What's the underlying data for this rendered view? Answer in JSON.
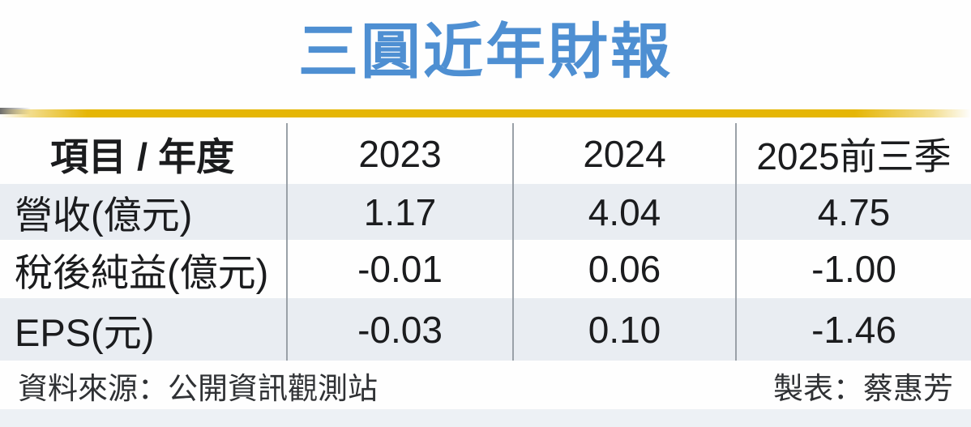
{
  "title": "三圓近年財報",
  "table": {
    "columns": [
      "項目 / 年度",
      "2023",
      "2024",
      "2025前三季"
    ],
    "rows": [
      {
        "label": "營收(億元)",
        "values": [
          "1.17",
          "4.04",
          "4.75"
        ]
      },
      {
        "label": "稅後純益(億元)",
        "values": [
          "-0.01",
          "0.06",
          "-1.00"
        ]
      },
      {
        "label": "EPS(元)",
        "values": [
          "-0.03",
          "0.10",
          "-1.46"
        ]
      }
    ]
  },
  "footer": {
    "source": "資料來源：公開資訊觀測站",
    "credit": "製表：蔡惠芳"
  },
  "colors": {
    "title_blue": "#4e8fd2",
    "gold_bar": "#e5b606",
    "row_stripe": "#e9edf2",
    "divider_gray": "#9aa1a8",
    "text_dark": "#1b1c1e"
  },
  "chart_data": {
    "type": "table",
    "title": "三圓近年財報",
    "columns": [
      "項目 / 年度",
      "2023",
      "2024",
      "2025前三季"
    ],
    "rows": [
      [
        "營收(億元)",
        1.17,
        4.04,
        4.75
      ],
      [
        "稅後純益(億元)",
        -0.01,
        0.06,
        -1.0
      ],
      [
        "EPS(元)",
        -0.03,
        0.1,
        -1.46
      ]
    ],
    "units": {
      "營收": "億元",
      "稅後純益": "億元",
      "EPS": "元"
    },
    "source": "資料來源：公開資訊觀測站",
    "credit": "製表：蔡惠芳"
  }
}
